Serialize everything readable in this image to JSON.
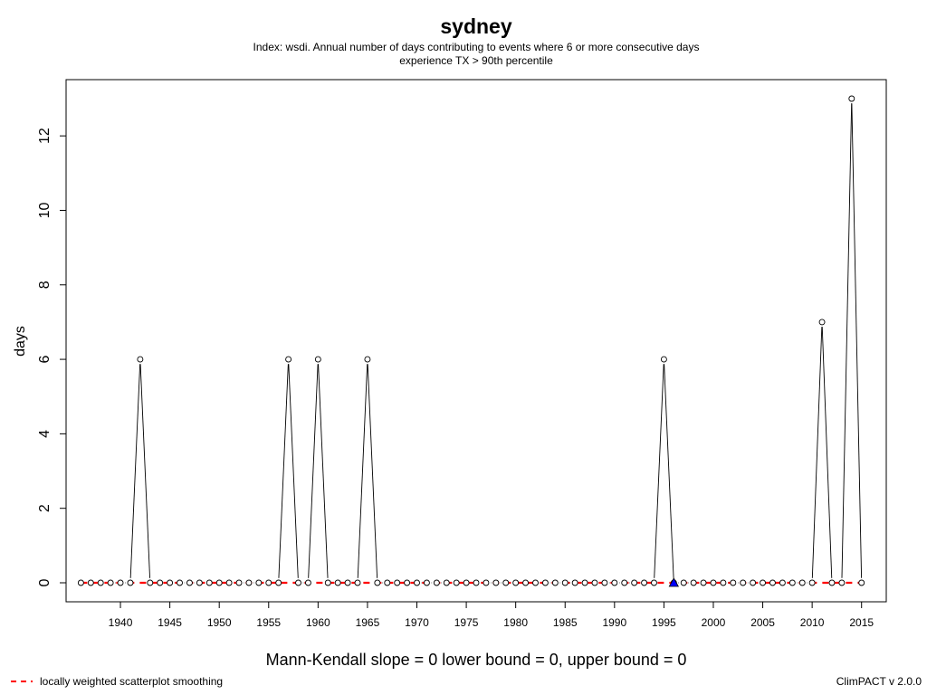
{
  "chart_data": {
    "type": "line",
    "title": "sydney",
    "subtitle_lines": [
      "Index: wsdi. Annual number of days contributing to events where 6 or more consecutive days",
      "experience TX > 90th percentile"
    ],
    "xlabel": "Mann-Kendall slope = 0   lower bound = 0,   upper bound = 0",
    "ylabel": "days",
    "xlim": [
      1934.5,
      2017.5
    ],
    "ylim": [
      -0.5,
      13.5
    ],
    "x_ticks": [
      1940,
      1945,
      1950,
      1955,
      1960,
      1965,
      1970,
      1975,
      1980,
      1985,
      1990,
      1995,
      2000,
      2005,
      2010,
      2015
    ],
    "y_ticks": [
      0,
      2,
      4,
      6,
      8,
      10,
      12
    ],
    "series": [
      {
        "values": [
          [
            1936,
            0
          ],
          [
            1937,
            0
          ],
          [
            1938,
            0
          ],
          [
            1939,
            0
          ],
          [
            1940,
            0
          ],
          [
            1941,
            0
          ],
          [
            1942,
            6
          ],
          [
            1943,
            0
          ],
          [
            1944,
            0
          ],
          [
            1945,
            0
          ],
          [
            1946,
            0
          ],
          [
            1947,
            0
          ],
          [
            1948,
            0
          ],
          [
            1949,
            0
          ],
          [
            1950,
            0
          ],
          [
            1951,
            0
          ],
          [
            1952,
            0
          ],
          [
            1953,
            0
          ],
          [
            1954,
            0
          ],
          [
            1955,
            0
          ],
          [
            1956,
            0
          ],
          [
            1957,
            6
          ],
          [
            1958,
            0
          ],
          [
            1959,
            0
          ],
          [
            1960,
            6
          ],
          [
            1961,
            0
          ],
          [
            1962,
            0
          ],
          [
            1963,
            0
          ],
          [
            1964,
            0
          ],
          [
            1965,
            6
          ],
          [
            1966,
            0
          ],
          [
            1967,
            0
          ],
          [
            1968,
            0
          ],
          [
            1969,
            0
          ],
          [
            1970,
            0
          ],
          [
            1971,
            0
          ],
          [
            1972,
            0
          ],
          [
            1973,
            0
          ],
          [
            1974,
            0
          ],
          [
            1975,
            0
          ],
          [
            1976,
            0
          ],
          [
            1977,
            0
          ],
          [
            1978,
            0
          ],
          [
            1979,
            0
          ],
          [
            1980,
            0
          ],
          [
            1981,
            0
          ],
          [
            1982,
            0
          ],
          [
            1983,
            0
          ],
          [
            1984,
            0
          ],
          [
            1985,
            0
          ],
          [
            1986,
            0
          ],
          [
            1987,
            0
          ],
          [
            1988,
            0
          ],
          [
            1989,
            0
          ],
          [
            1990,
            0
          ],
          [
            1991,
            0
          ],
          [
            1992,
            0
          ],
          [
            1993,
            0
          ],
          [
            1994,
            0
          ],
          [
            1995,
            6
          ],
          [
            1996,
            0
          ],
          [
            1997,
            0
          ],
          [
            1998,
            0
          ],
          [
            1999,
            0
          ],
          [
            2000,
            0
          ],
          [
            2001,
            0
          ],
          [
            2002,
            0
          ],
          [
            2003,
            0
          ],
          [
            2004,
            0
          ],
          [
            2005,
            0
          ],
          [
            2006,
            0
          ],
          [
            2007,
            0
          ],
          [
            2008,
            0
          ],
          [
            2009,
            0
          ],
          [
            2010,
            0
          ],
          [
            2011,
            7
          ],
          [
            2012,
            0
          ],
          [
            2013,
            0
          ],
          [
            2014,
            13
          ],
          [
            2015,
            0
          ]
        ],
        "color": "#000000"
      },
      {
        "name": "locally weighted scatterplot smoothing",
        "type": "lowess",
        "x_range": [
          1936,
          2015
        ],
        "value": 0,
        "color": "#ff0000",
        "dash": "dashed"
      }
    ],
    "missing_marker": {
      "x": 1996,
      "y": 0,
      "shape": "triangle",
      "color": "#0000ff"
    },
    "grid": false,
    "legend": {
      "position": "bottom-left",
      "label": "locally weighted scatterplot smoothing"
    }
  },
  "footer": {
    "version": "ClimPACT v 2.0.0"
  }
}
